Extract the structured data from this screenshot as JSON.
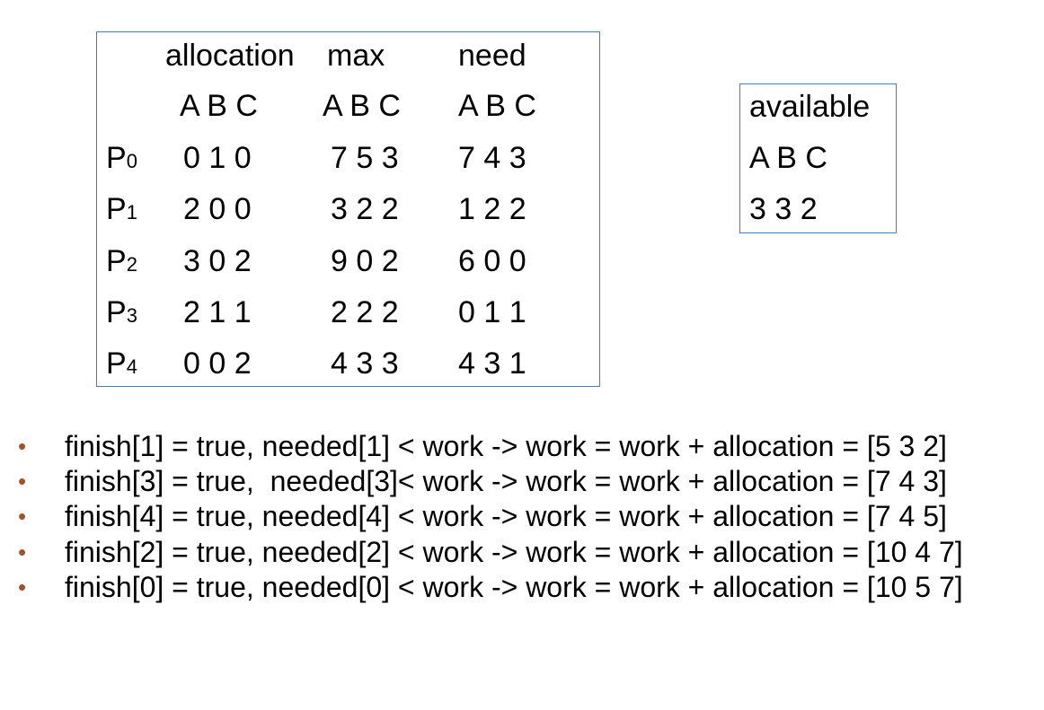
{
  "table": {
    "headers": [
      "allocation",
      "max",
      "need"
    ],
    "subheaders": [
      "A B C",
      "A B C",
      "A B C"
    ],
    "rows": [
      {
        "p": "P",
        "sub": "0",
        "allocation": "0 1 0",
        "max": "7 5 3",
        "need": "7 4 3"
      },
      {
        "p": "P",
        "sub": "1",
        "allocation": "2 0 0",
        "max": "3 2 2",
        "need": "1 2 2"
      },
      {
        "p": "P",
        "sub": "2",
        "allocation": "3 0 2",
        "max": "9 0 2",
        "need": "6 0 0"
      },
      {
        "p": "P",
        "sub": "3",
        "allocation": "2 1 1",
        "max": "2 2 2",
        "need": "0 1 1"
      },
      {
        "p": "P",
        "sub": "4",
        "allocation": "0 0 2",
        "max": "4 3 3",
        "need": "4 3 1"
      }
    ]
  },
  "available": {
    "title": "available",
    "columns": "A B C",
    "values": "3 3 2"
  },
  "steps": [
    "finish[1] = true, needed[1] < work -> work = work + allocation = [5 3 2]",
    "finish[3] = true,  needed[3]< work -> work = work + allocation = [7 4 3]",
    "finish[4] = true, needed[4] < work -> work = work + allocation = [7 4 5]",
    "finish[2] = true, needed[2] < work -> work = work + allocation = [10 4 7]",
    "finish[0] = true, needed[0] < work -> work = work + allocation = [10 5 7]"
  ],
  "bullet_symbol": "•"
}
